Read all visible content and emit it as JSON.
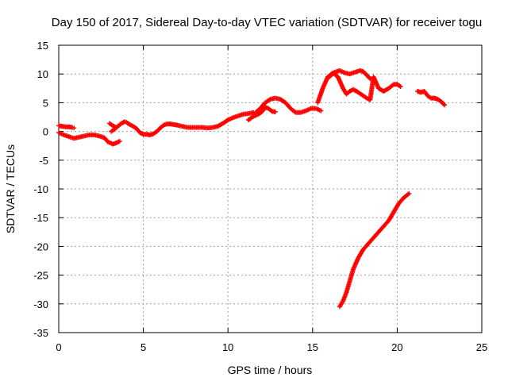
{
  "chart_data": {
    "type": "scatter",
    "title": "Day 150 of 2017, Sidereal Day-to-day VTEC variation (SDTVAR) for receiver togu",
    "xlabel": "GPS time / hours",
    "ylabel": "SDTVAR / TECUs",
    "xlim": [
      0,
      25
    ],
    "ylim": [
      -35,
      15
    ],
    "x_ticks": [
      {
        "value": 0,
        "label": "0"
      },
      {
        "value": 5,
        "label": "5"
      },
      {
        "value": 10,
        "label": "10"
      },
      {
        "value": 15,
        "label": "15"
      },
      {
        "value": 20,
        "label": "20"
      },
      {
        "value": 25,
        "label": "25"
      }
    ],
    "y_ticks": [
      {
        "value": 15,
        "label": "15"
      },
      {
        "value": 10,
        "label": "10"
      },
      {
        "value": 5,
        "label": "5"
      },
      {
        "value": 0,
        "label": "0"
      },
      {
        "value": -5,
        "label": "-5"
      },
      {
        "value": -10,
        "label": "-10"
      },
      {
        "value": -15,
        "label": "-15"
      },
      {
        "value": -20,
        "label": "-20"
      },
      {
        "value": -25,
        "label": "-25"
      },
      {
        "value": -30,
        "label": "-30"
      },
      {
        "value": -35,
        "label": "-35"
      }
    ],
    "grid": true,
    "marker": "cross",
    "color": "#ff0000",
    "series": [
      {
        "x": [
          0.0,
          0.2,
          0.4,
          0.6,
          0.8,
          0.9
        ],
        "y": [
          1.0,
          0.9,
          0.8,
          0.8,
          0.7,
          0.6
        ]
      },
      {
        "x": [
          0.0,
          0.3,
          0.6,
          0.9,
          1.2,
          1.5,
          1.8,
          2.1,
          2.4,
          2.7,
          2.9,
          3.2,
          3.4,
          3.6
        ],
        "y": [
          -0.2,
          -0.6,
          -0.9,
          -1.2,
          -1.0,
          -0.8,
          -0.6,
          -0.6,
          -0.8,
          -1.1,
          -1.8,
          -2.2,
          -2.0,
          -1.7
        ]
      },
      {
        "x": [
          3.1,
          3.3,
          3.5,
          3.7,
          3.9,
          4.0,
          4.2,
          4.4,
          4.6,
          4.8,
          5.0,
          5.2,
          5.4,
          5.6,
          5.8,
          6.0,
          6.2,
          6.4,
          6.6,
          6.8,
          7.0,
          7.3,
          7.6,
          7.9,
          8.2,
          8.5,
          8.8,
          9.1,
          9.4,
          9.7,
          10.0,
          10.3,
          10.6,
          10.9,
          11.2,
          11.5
        ],
        "y": [
          0.0,
          0.4,
          0.9,
          1.4,
          1.7,
          1.6,
          1.2,
          0.9,
          0.5,
          -0.2,
          -0.5,
          -0.5,
          -0.6,
          -0.4,
          0.0,
          0.6,
          1.1,
          1.3,
          1.3,
          1.2,
          1.1,
          0.9,
          0.7,
          0.7,
          0.7,
          0.7,
          0.6,
          0.7,
          0.9,
          1.4,
          2.0,
          2.4,
          2.7,
          3.0,
          3.1,
          3.3
        ]
      },
      {
        "x": [
          3.0,
          3.2,
          3.4
        ],
        "y": [
          1.4,
          1.0,
          0.7
        ]
      },
      {
        "x": [
          11.2,
          11.5,
          11.8,
          12.0,
          12.2,
          12.4,
          12.6,
          12.8
        ],
        "y": [
          2.0,
          2.6,
          3.0,
          3.4,
          4.2,
          4.0,
          3.5,
          3.4
        ]
      },
      {
        "x": [
          11.6,
          11.9,
          12.2,
          12.5,
          12.8,
          13.1,
          13.4,
          13.7,
          14.0,
          14.3,
          14.6,
          14.9,
          15.2,
          15.5
        ],
        "y": [
          3.2,
          4.0,
          5.0,
          5.6,
          5.8,
          5.6,
          5.0,
          4.0,
          3.3,
          3.3,
          3.6,
          4.0,
          4.0,
          3.6
        ]
      },
      {
        "x": [
          15.3,
          15.6,
          15.9,
          16.2,
          16.5,
          16.8,
          17.0,
          17.2,
          17.4,
          17.6,
          17.8,
          18.0,
          18.2,
          18.4,
          18.6,
          18.9,
          19.2,
          19.5,
          19.8,
          20.0,
          20.2
        ],
        "y": [
          5.0,
          7.5,
          9.5,
          10.2,
          9.5,
          7.5,
          6.5,
          7.0,
          7.3,
          7.0,
          6.6,
          6.2,
          5.8,
          5.5,
          9.5,
          7.5,
          7.0,
          7.5,
          8.2,
          8.2,
          7.8
        ]
      },
      {
        "x": [
          16.0,
          16.3,
          16.6,
          16.9,
          17.2,
          17.5,
          17.8,
          18.0,
          18.2,
          18.4
        ],
        "y": [
          9.5,
          10.3,
          10.6,
          10.2,
          10.0,
          10.3,
          10.6,
          10.4,
          9.8,
          9.2
        ]
      },
      {
        "x": [
          21.2,
          21.4,
          21.6,
          21.8,
          22.0,
          22.2,
          22.4,
          22.6,
          22.8
        ],
        "y": [
          7.0,
          6.8,
          7.0,
          6.2,
          5.8,
          5.8,
          5.6,
          5.2,
          4.6
        ]
      },
      {
        "x": [
          16.6,
          16.8,
          17.0,
          17.2,
          17.4,
          17.7,
          18.0,
          18.3,
          18.6,
          18.9,
          19.2,
          19.5,
          19.8,
          20.1,
          20.4,
          20.7
        ],
        "y": [
          -30.5,
          -29.5,
          -28.0,
          -26.0,
          -24.0,
          -22.0,
          -20.5,
          -19.5,
          -18.5,
          -17.5,
          -16.5,
          -15.5,
          -14.0,
          -12.5,
          -11.5,
          -10.8
        ]
      }
    ]
  }
}
